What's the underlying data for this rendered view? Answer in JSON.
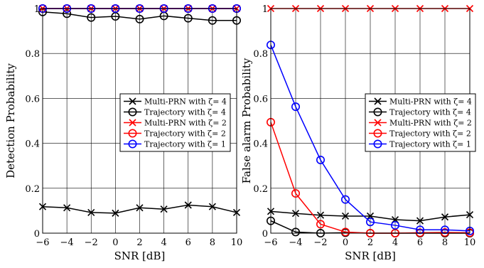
{
  "chart_data": [
    {
      "type": "line",
      "xlabel": "SNR [dB]",
      "ylabel": "Detection Probability",
      "xlim": [
        -6,
        10
      ],
      "ylim": [
        0,
        1
      ],
      "x": [
        -6,
        -4,
        -2,
        0,
        2,
        4,
        6,
        8,
        10
      ],
      "xticks": [
        -6,
        -4,
        -2,
        0,
        2,
        4,
        6,
        8,
        10
      ],
      "yticks": [
        0,
        0.2,
        0.4,
        0.6,
        0.8,
        1
      ],
      "ytick_labels": [
        "0",
        "0.2",
        "0.4",
        "0.6",
        "0.8",
        "1"
      ],
      "grid": true,
      "legend_placement": "center-right",
      "series": [
        {
          "name": "Multi-PRN with ζ= 4",
          "color": "#000000",
          "marker": "x",
          "values": [
            0.118,
            0.113,
            0.092,
            0.089,
            0.113,
            0.107,
            0.125,
            0.118,
            0.092
          ]
        },
        {
          "name": "Trajectory with ζ= 4",
          "color": "#000000",
          "marker": "o",
          "values": [
            0.985,
            0.977,
            0.96,
            0.965,
            0.953,
            0.967,
            0.957,
            0.947,
            0.947
          ]
        },
        {
          "name": "Multi-PRN with ζ= 2",
          "color": "#ff0000",
          "marker": "x",
          "values": [
            1,
            1,
            1,
            1,
            1,
            1,
            1,
            1,
            1
          ]
        },
        {
          "name": "Trajectory with ζ= 2",
          "color": "#ff0000",
          "marker": "o",
          "values": [
            1,
            1,
            1,
            1,
            1,
            1,
            1,
            1,
            1
          ]
        },
        {
          "name": "Trajectory with ζ= 1",
          "color": "#0000ff",
          "marker": "o",
          "values": [
            1,
            1,
            1,
            1,
            1,
            1,
            1,
            1,
            1
          ]
        }
      ]
    },
    {
      "type": "line",
      "xlabel": "SNR [dB]",
      "ylabel": "False alarm Probability",
      "xlim": [
        -6,
        10
      ],
      "ylim": [
        0,
        1
      ],
      "x": [
        -6,
        -4,
        -2,
        0,
        2,
        4,
        6,
        8,
        10
      ],
      "xticks": [
        -6,
        -4,
        -2,
        0,
        2,
        4,
        6,
        8,
        10
      ],
      "yticks": [
        0,
        0.2,
        0.4,
        0.6,
        0.8,
        1
      ],
      "ytick_labels": [
        "0",
        "0.2",
        "0.4",
        "0.6",
        "0.8",
        "1"
      ],
      "grid": true,
      "legend_placement": "center-right",
      "series": [
        {
          "name": "Multi-PRN with ζ= 4",
          "color": "#000000",
          "marker": "x",
          "values": [
            0.097,
            0.088,
            0.08,
            0.076,
            0.076,
            0.06,
            0.055,
            0.072,
            0.082
          ]
        },
        {
          "name": "Trajectory with ζ= 4",
          "color": "#000000",
          "marker": "o",
          "values": [
            0.055,
            0.005,
            0.0,
            0.002,
            0.0,
            0.0,
            0.0,
            0.0,
            0.0
          ]
        },
        {
          "name": "Multi-PRN with ζ= 2",
          "color": "#ff0000",
          "marker": "x",
          "values": [
            1,
            1,
            1,
            1,
            1,
            1,
            1,
            1,
            1
          ]
        },
        {
          "name": "Trajectory with ζ= 2",
          "color": "#ff0000",
          "marker": "o",
          "values": [
            0.494,
            0.177,
            0.04,
            0.005,
            0.0,
            0.0,
            0.002,
            0.003,
            0.002
          ]
        },
        {
          "name": "Trajectory with ζ= 1",
          "color": "#0000ff",
          "marker": "o",
          "values": [
            0.838,
            0.563,
            0.326,
            0.15,
            0.05,
            0.035,
            0.015,
            0.015,
            0.01
          ]
        }
      ]
    }
  ]
}
